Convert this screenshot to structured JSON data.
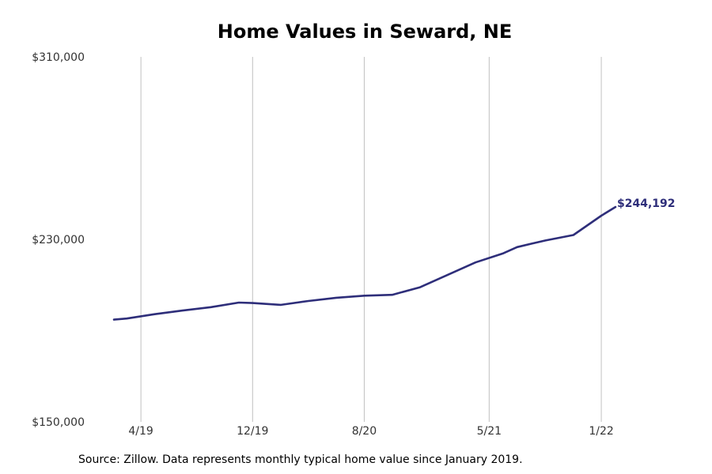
{
  "chart_data": {
    "type": "line",
    "title": "Home Values in Seward, NE",
    "source": "Source: Zillow. Data represents monthly typical home value since January 2019.",
    "xlabel": "",
    "ylabel": "",
    "ylim": [
      150000,
      310000
    ],
    "yticks": [
      {
        "value": 150000,
        "label": "$150,000"
      },
      {
        "value": 230000,
        "label": "$230,000"
      },
      {
        "value": 310000,
        "label": "$310,000"
      }
    ],
    "xlim": [
      "2019-01-01",
      "2022-06-01"
    ],
    "xticks": [
      {
        "date": "2019-04-01",
        "label": "4/19"
      },
      {
        "date": "2019-12-01",
        "label": "12/19"
      },
      {
        "date": "2020-08-01",
        "label": "8/20"
      },
      {
        "date": "2021-05-01",
        "label": "5/21"
      },
      {
        "date": "2022-01-01",
        "label": "1/22"
      }
    ],
    "grid": "vertical",
    "end_label": "$244,192",
    "colors": {
      "line": "#2e2e7a",
      "grid": "#c0c0c0"
    },
    "series": [
      {
        "points": [
          {
            "x": "2019-02-01",
            "y": 194800
          },
          {
            "x": "2019-03-01",
            "y": 195300
          },
          {
            "x": "2019-05-01",
            "y": 197200
          },
          {
            "x": "2019-07-01",
            "y": 198800
          },
          {
            "x": "2019-09-01",
            "y": 200300
          },
          {
            "x": "2019-11-01",
            "y": 202300
          },
          {
            "x": "2019-12-01",
            "y": 202100
          },
          {
            "x": "2020-02-01",
            "y": 201300
          },
          {
            "x": "2020-04-01",
            "y": 203000
          },
          {
            "x": "2020-06-01",
            "y": 204400
          },
          {
            "x": "2020-08-01",
            "y": 205300
          },
          {
            "x": "2020-10-01",
            "y": 205700
          },
          {
            "x": "2020-12-01",
            "y": 209000
          },
          {
            "x": "2021-04-01",
            "y": 219900
          },
          {
            "x": "2021-06-01",
            "y": 223900
          },
          {
            "x": "2021-07-01",
            "y": 226600
          },
          {
            "x": "2021-08-01",
            "y": 228100
          },
          {
            "x": "2021-09-01",
            "y": 229500
          },
          {
            "x": "2021-11-01",
            "y": 231900
          },
          {
            "x": "2022-01-01",
            "y": 240400
          },
          {
            "x": "2022-02-01",
            "y": 244192
          }
        ]
      }
    ]
  }
}
